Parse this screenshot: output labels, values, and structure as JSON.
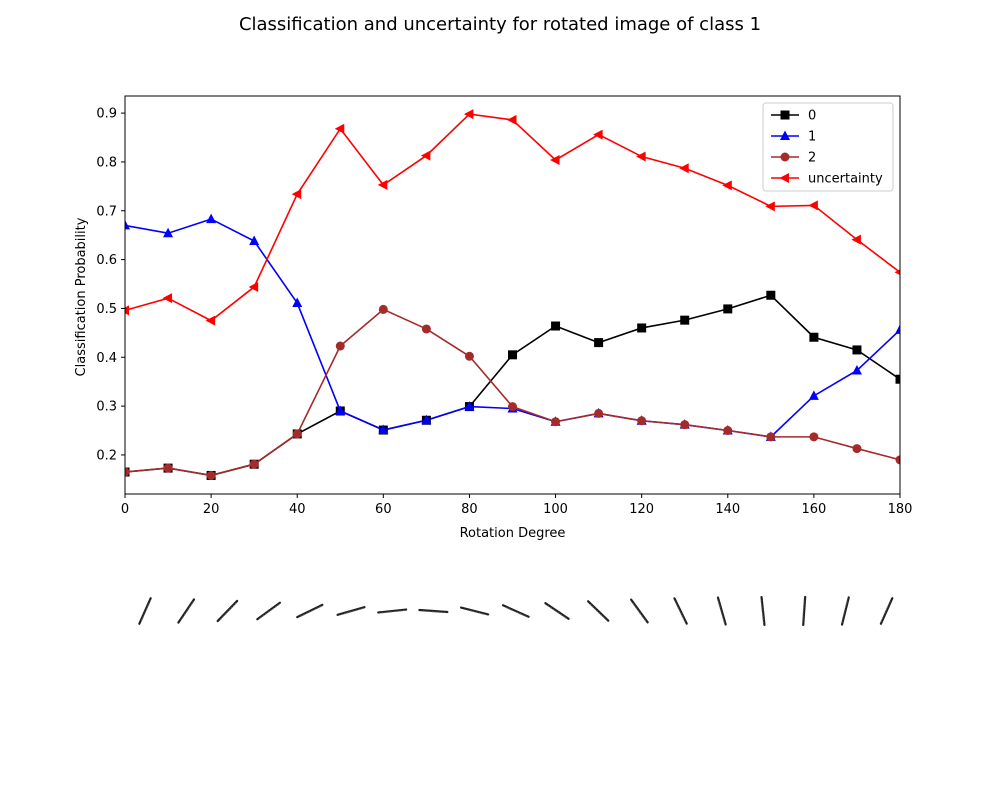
{
  "chart_data": {
    "type": "line",
    "title": "Classification and uncertainty for rotated image of class 1",
    "xlabel": "Rotation Degree",
    "ylabel": "Classification Probability",
    "xlim": [
      0,
      180
    ],
    "ylim": [
      0.12,
      0.935
    ],
    "x_ticks": [
      0,
      20,
      40,
      60,
      80,
      100,
      120,
      140,
      160,
      180
    ],
    "y_ticks": [
      0.2,
      0.3,
      0.4,
      0.5,
      0.6,
      0.7,
      0.8,
      0.9
    ],
    "grid": false,
    "legend_position": "top-right",
    "x": [
      0,
      10,
      20,
      30,
      40,
      50,
      60,
      70,
      80,
      90,
      100,
      110,
      120,
      130,
      140,
      150,
      160,
      170,
      180
    ],
    "series": [
      {
        "name": "0",
        "color": "#000000",
        "marker": "square",
        "values": [
          0.165,
          0.173,
          0.158,
          0.181,
          0.243,
          0.29,
          0.251,
          0.271,
          0.299,
          0.405,
          0.464,
          0.43,
          0.46,
          0.476,
          0.499,
          0.527,
          0.441,
          0.415,
          0.355
        ]
      },
      {
        "name": "1",
        "color": "#0000ff",
        "marker": "triangle-up",
        "values": [
          0.67,
          0.654,
          0.683,
          0.638,
          0.511,
          0.29,
          0.251,
          0.271,
          0.299,
          0.295,
          0.268,
          0.285,
          0.27,
          0.262,
          0.25,
          0.237,
          0.321,
          0.373,
          0.456
        ]
      },
      {
        "name": "2",
        "color": "#a52a2a",
        "marker": "circle",
        "values": [
          0.165,
          0.173,
          0.158,
          0.181,
          0.243,
          0.423,
          0.498,
          0.458,
          0.402,
          0.299,
          0.268,
          0.285,
          0.27,
          0.262,
          0.25,
          0.237,
          0.237,
          0.213,
          0.19
        ]
      },
      {
        "name": "uncertainty",
        "color": "#ff0000",
        "marker": "triangle-left",
        "values": [
          0.496,
          0.521,
          0.475,
          0.544,
          0.734,
          0.868,
          0.753,
          0.813,
          0.898,
          0.886,
          0.804,
          0.856,
          0.811,
          0.787,
          0.752,
          0.709,
          0.711,
          0.641,
          0.574
        ]
      }
    ],
    "rotated_digits": {
      "description_none": "",
      "angles_deg": [
        0,
        10,
        20,
        30,
        40,
        50,
        60,
        70,
        80,
        90,
        100,
        110,
        120,
        130,
        140,
        150,
        160,
        170,
        180
      ]
    }
  }
}
